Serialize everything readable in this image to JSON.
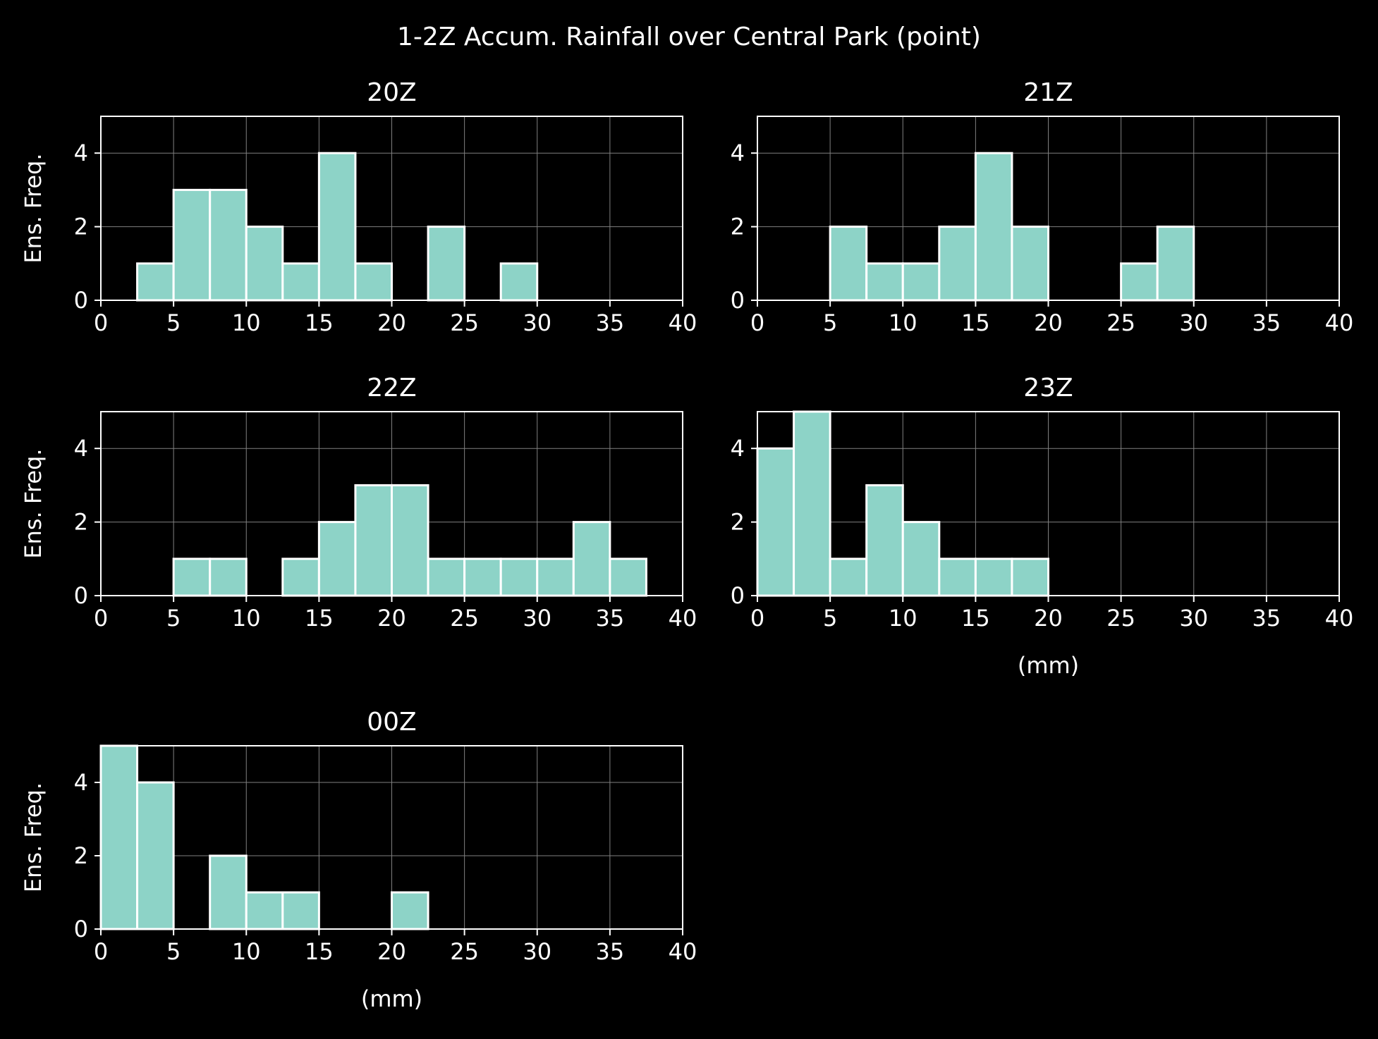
{
  "figure": {
    "title": "1-2Z Accum. Rainfall over Central Park (point)",
    "background": "#000000",
    "bar_color": "#8dd3c7",
    "edge_color": "#ffffff",
    "grid_color": "#808080"
  },
  "chart_data": [
    {
      "type": "bar",
      "title": "20Z",
      "ylabel": "Ens. Freq.",
      "xlabel": "",
      "bin_width": 2.5,
      "bin_edges": [
        0,
        2.5,
        5,
        7.5,
        10,
        12.5,
        15,
        17.5,
        20,
        22.5,
        25,
        27.5,
        30,
        32.5,
        35,
        37.5
      ],
      "values": [
        0,
        1,
        3,
        3,
        2,
        1,
        4,
        1,
        0,
        2,
        0,
        1,
        0,
        0,
        0
      ],
      "xlim": [
        0,
        40
      ],
      "ylim": [
        0,
        5
      ],
      "xticks": [
        0,
        5,
        10,
        15,
        20,
        25,
        30,
        35,
        40
      ],
      "yticks": [
        0,
        2,
        4
      ],
      "grid": true
    },
    {
      "type": "bar",
      "title": "21Z",
      "ylabel": "",
      "xlabel": "",
      "bin_width": 2.5,
      "bin_edges": [
        0,
        2.5,
        5,
        7.5,
        10,
        12.5,
        15,
        17.5,
        20,
        22.5,
        25,
        27.5,
        30,
        32.5,
        35,
        37.5
      ],
      "values": [
        0,
        0,
        2,
        1,
        1,
        2,
        4,
        2,
        0,
        0,
        1,
        2,
        0,
        0,
        0
      ],
      "xlim": [
        0,
        40
      ],
      "ylim": [
        0,
        5
      ],
      "xticks": [
        0,
        5,
        10,
        15,
        20,
        25,
        30,
        35,
        40
      ],
      "yticks": [
        0,
        2,
        4
      ],
      "grid": true
    },
    {
      "type": "bar",
      "title": "22Z",
      "ylabel": "Ens. Freq.",
      "xlabel": "",
      "bin_width": 2.5,
      "bin_edges": [
        0,
        2.5,
        5,
        7.5,
        10,
        12.5,
        15,
        17.5,
        20,
        22.5,
        25,
        27.5,
        30,
        32.5,
        35,
        37.5
      ],
      "values": [
        0,
        0,
        1,
        1,
        0,
        1,
        2,
        3,
        3,
        1,
        1,
        1,
        1,
        2,
        1
      ],
      "xlim": [
        0,
        40
      ],
      "ylim": [
        0,
        5
      ],
      "xticks": [
        0,
        5,
        10,
        15,
        20,
        25,
        30,
        35,
        40
      ],
      "yticks": [
        0,
        2,
        4
      ],
      "grid": true
    },
    {
      "type": "bar",
      "title": "23Z",
      "ylabel": "",
      "xlabel": "(mm)",
      "bin_width": 2.5,
      "bin_edges": [
        0,
        2.5,
        5,
        7.5,
        10,
        12.5,
        15,
        17.5,
        20,
        22.5,
        25,
        27.5,
        30,
        32.5,
        35,
        37.5
      ],
      "values": [
        4,
        5,
        1,
        3,
        2,
        1,
        1,
        1,
        0,
        0,
        0,
        0,
        0,
        0,
        0
      ],
      "xlim": [
        0,
        40
      ],
      "ylim": [
        0,
        5
      ],
      "xticks": [
        0,
        5,
        10,
        15,
        20,
        25,
        30,
        35,
        40
      ],
      "yticks": [
        0,
        2,
        4
      ],
      "grid": true
    },
    {
      "type": "bar",
      "title": "00Z",
      "ylabel": "Ens. Freq.",
      "xlabel": "(mm)",
      "bin_width": 2.5,
      "bin_edges": [
        0,
        2.5,
        5,
        7.5,
        10,
        12.5,
        15,
        17.5,
        20,
        22.5,
        25,
        27.5,
        30,
        32.5,
        35,
        37.5
      ],
      "values": [
        5,
        4,
        0,
        2,
        1,
        1,
        0,
        0,
        1,
        0,
        0,
        0,
        0,
        0,
        0
      ],
      "xlim": [
        0,
        40
      ],
      "ylim": [
        0,
        5
      ],
      "xticks": [
        0,
        5,
        10,
        15,
        20,
        25,
        30,
        35,
        40
      ],
      "yticks": [
        0,
        2,
        4
      ],
      "grid": true
    }
  ]
}
